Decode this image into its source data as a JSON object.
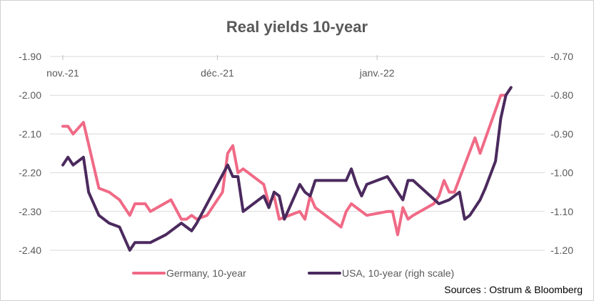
{
  "chart_data": {
    "type": "line",
    "title": "Real yields 10-year",
    "source": "Sources : Ostrum & Bloomberg",
    "x_axis": {
      "range": [
        "2021-11-01",
        "2022-01-28"
      ],
      "tick_labels": [
        {
          "label": "nov.-21",
          "date": "2021-11-01"
        },
        {
          "label": "déc.-21",
          "date": "2021-12-01"
        },
        {
          "label": "janv.-22",
          "date": "2022-01-01"
        }
      ],
      "position": "top"
    },
    "y_left": {
      "range": [
        -2.4,
        -1.9
      ],
      "ticks": [
        "-1.90",
        "-2.00",
        "-2.10",
        "-2.20",
        "-2.30",
        "-2.40"
      ]
    },
    "y_right": {
      "range": [
        -1.2,
        -0.7
      ],
      "ticks": [
        "-0.70",
        "-0.80",
        "-0.90",
        "-1.00",
        "-1.10",
        "-1.20"
      ]
    },
    "grid": "horizontal",
    "legend_position": "bottom",
    "series": [
      {
        "name": "Germany, 10-year",
        "axis": "left",
        "color": "#f06a86",
        "points": [
          [
            "2021-11-01",
            -2.08
          ],
          [
            "2021-11-02",
            -2.08
          ],
          [
            "2021-11-03",
            -2.1
          ],
          [
            "2021-11-05",
            -2.07
          ],
          [
            "2021-11-08",
            -2.24
          ],
          [
            "2021-11-10",
            -2.25
          ],
          [
            "2021-11-12",
            -2.27
          ],
          [
            "2021-11-14",
            -2.31
          ],
          [
            "2021-11-15",
            -2.28
          ],
          [
            "2021-11-17",
            -2.28
          ],
          [
            "2021-11-18",
            -2.3
          ],
          [
            "2021-11-22",
            -2.27
          ],
          [
            "2021-11-24",
            -2.32
          ],
          [
            "2021-11-25",
            -2.32
          ],
          [
            "2021-11-26",
            -2.31
          ],
          [
            "2021-11-27",
            -2.32
          ],
          [
            "2021-11-29",
            -2.31
          ],
          [
            "2021-12-02",
            -2.25
          ],
          [
            "2021-12-03",
            -2.15
          ],
          [
            "2021-12-04",
            -2.13
          ],
          [
            "2021-12-05",
            -2.2
          ],
          [
            "2021-12-06",
            -2.19
          ],
          [
            "2021-12-10",
            -2.23
          ],
          [
            "2021-12-11",
            -2.28
          ],
          [
            "2021-12-12",
            -2.26
          ],
          [
            "2021-12-13",
            -2.32
          ],
          [
            "2021-12-17",
            -2.3
          ],
          [
            "2021-12-18",
            -2.32
          ],
          [
            "2021-12-19",
            -2.26
          ],
          [
            "2021-12-20",
            -2.29
          ],
          [
            "2021-12-21",
            -2.3
          ],
          [
            "2021-12-25",
            -2.34
          ],
          [
            "2021-12-26",
            -2.3
          ],
          [
            "2021-12-27",
            -2.28
          ],
          [
            "2021-12-29",
            -2.3
          ],
          [
            "2021-12-30",
            -2.31
          ],
          [
            "2022-01-03",
            -2.3
          ],
          [
            "2022-01-04",
            -2.3
          ],
          [
            "2022-01-05",
            -2.36
          ],
          [
            "2022-01-06",
            -2.29
          ],
          [
            "2022-01-07",
            -2.32
          ],
          [
            "2022-01-08",
            -2.31
          ],
          [
            "2022-01-12",
            -2.28
          ],
          [
            "2022-01-13",
            -2.26
          ],
          [
            "2022-01-14",
            -2.22
          ],
          [
            "2022-01-15",
            -2.25
          ],
          [
            "2022-01-16",
            -2.25
          ],
          [
            "2022-01-20",
            -2.11
          ],
          [
            "2022-01-21",
            -2.15
          ],
          [
            "2022-01-25",
            -2.0
          ],
          [
            "2022-01-26",
            -2.0
          ]
        ]
      },
      {
        "name": "USA, 10-year (righ scale)",
        "axis": "right",
        "color": "#4b2a5e",
        "points": [
          [
            "2021-11-01",
            -0.98
          ],
          [
            "2021-11-02",
            -0.96
          ],
          [
            "2021-11-03",
            -0.98
          ],
          [
            "2021-11-05",
            -0.96
          ],
          [
            "2021-11-06",
            -1.05
          ],
          [
            "2021-11-08",
            -1.11
          ],
          [
            "2021-11-10",
            -1.13
          ],
          [
            "2021-11-12",
            -1.14
          ],
          [
            "2021-11-14",
            -1.2
          ],
          [
            "2021-11-15",
            -1.18
          ],
          [
            "2021-11-18",
            -1.18
          ],
          [
            "2021-11-21",
            -1.16
          ],
          [
            "2021-11-24",
            -1.13
          ],
          [
            "2021-11-26",
            -1.15
          ],
          [
            "2021-11-27",
            -1.13
          ],
          [
            "2021-12-01",
            -1.03
          ],
          [
            "2021-12-03",
            -0.98
          ],
          [
            "2021-12-04",
            -1.01
          ],
          [
            "2021-12-05",
            -1.01
          ],
          [
            "2021-12-06",
            -1.1
          ],
          [
            "2021-12-10",
            -1.06
          ],
          [
            "2021-12-11",
            -1.09
          ],
          [
            "2021-12-12",
            -1.05
          ],
          [
            "2021-12-13",
            -1.06
          ],
          [
            "2021-12-14",
            -1.12
          ],
          [
            "2021-12-17",
            -1.03
          ],
          [
            "2021-12-18",
            -1.05
          ],
          [
            "2021-12-19",
            -1.06
          ],
          [
            "2021-12-20",
            -1.02
          ],
          [
            "2021-12-21",
            -1.02
          ],
          [
            "2021-12-26",
            -1.02
          ],
          [
            "2021-12-27",
            -0.99
          ],
          [
            "2021-12-28",
            -1.03
          ],
          [
            "2021-12-29",
            -1.06
          ],
          [
            "2021-12-30",
            -1.03
          ],
          [
            "2022-01-01",
            -1.02
          ],
          [
            "2022-01-03",
            -1.01
          ],
          [
            "2022-01-06",
            -1.07
          ],
          [
            "2022-01-07",
            -1.02
          ],
          [
            "2022-01-08",
            -1.02
          ],
          [
            "2022-01-13",
            -1.08
          ],
          [
            "2022-01-15",
            -1.07
          ],
          [
            "2022-01-17",
            -1.05
          ],
          [
            "2022-01-18",
            -1.12
          ],
          [
            "2022-01-19",
            -1.11
          ],
          [
            "2022-01-21",
            -1.07
          ],
          [
            "2022-01-22",
            -1.04
          ],
          [
            "2022-01-24",
            -0.97
          ],
          [
            "2022-01-25",
            -0.86
          ],
          [
            "2022-01-26",
            -0.8
          ],
          [
            "2022-01-27",
            -0.78
          ]
        ]
      }
    ]
  }
}
